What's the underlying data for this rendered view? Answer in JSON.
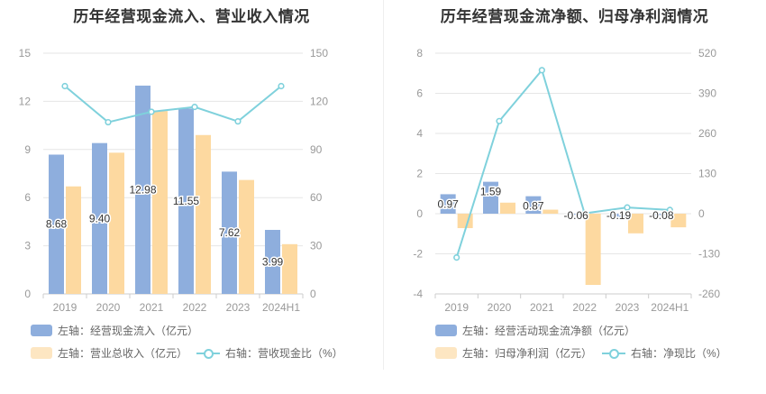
{
  "colors": {
    "bar_primary": "#8eaedd",
    "bar_secondary": "#fdd9a0",
    "line": "#7fd1dc",
    "grid": "#e6e6e6"
  },
  "chart_data": [
    {
      "type": "bar",
      "title": "历年经营现金流入、营业收入情况",
      "categories": [
        "2019",
        "2020",
        "2021",
        "2022",
        "2023",
        "2024H1"
      ],
      "left_axis": {
        "ticks": [
          "0",
          "3",
          "6",
          "9",
          "12",
          "15"
        ],
        "ylim": [
          0,
          15
        ]
      },
      "right_axis": {
        "ticks": [
          "0",
          "30",
          "60",
          "90",
          "120",
          "150"
        ],
        "ylim": [
          0,
          150
        ]
      },
      "series": [
        {
          "name": "左轴：经营现金流入（亿元）",
          "axis": "left",
          "kind": "bar",
          "values": [
            8.68,
            9.4,
            12.98,
            11.55,
            7.62,
            3.99
          ],
          "labels": [
            "8.68",
            "9.40",
            "12.98",
            "11.55",
            "7.62",
            "3.99"
          ]
        },
        {
          "name": "左轴：营业总收入（亿元）",
          "axis": "left",
          "kind": "bar",
          "values": [
            6.7,
            8.8,
            11.4,
            9.9,
            7.1,
            3.1
          ]
        },
        {
          "name": "右轴：营收现金比（%）",
          "axis": "right",
          "kind": "line",
          "values": [
            129.5,
            107.0,
            113.5,
            116.5,
            107.5,
            129.5
          ]
        }
      ],
      "grid": true,
      "legend_position": "bottom-left"
    },
    {
      "type": "bar",
      "title": "历年经营现金流净额、归母净利润情况",
      "categories": [
        "2019",
        "2020",
        "2021",
        "2022",
        "2023",
        "2024H1"
      ],
      "left_axis": {
        "ticks": [
          "-4",
          "-2",
          "0",
          "2",
          "4",
          "6",
          "8"
        ],
        "ylim": [
          -4,
          8
        ]
      },
      "right_axis": {
        "ticks": [
          "-260",
          "-130",
          "0",
          "130",
          "260",
          "390",
          "520"
        ],
        "ylim": [
          -260,
          520
        ]
      },
      "series": [
        {
          "name": "左轴：经营活动现金流净额（亿元）",
          "axis": "left",
          "kind": "bar",
          "values": [
            0.97,
            1.59,
            0.87,
            -0.06,
            -0.19,
            -0.08
          ],
          "labels": [
            "0.97",
            "1.59",
            "0.87",
            "-0.06",
            "-0.19",
            "-0.08"
          ]
        },
        {
          "name": "左轴：归母净利润（亿元）",
          "axis": "left",
          "kind": "bar",
          "values": [
            -0.72,
            0.55,
            0.2,
            -3.55,
            -0.98,
            -0.68
          ]
        },
        {
          "name": "右轴：净现比（%）",
          "axis": "right",
          "kind": "line",
          "values": [
            -142,
            300,
            465,
            1,
            20,
            12
          ]
        }
      ],
      "grid": true,
      "legend_position": "bottom-left"
    }
  ]
}
